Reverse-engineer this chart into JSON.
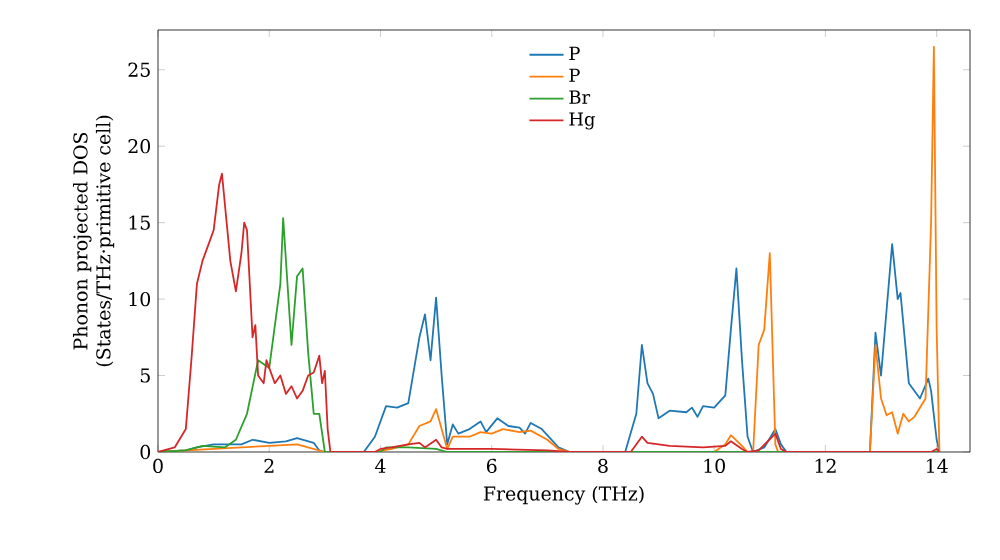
{
  "chart_data": {
    "type": "line",
    "xlabel": "Frequency (THz)",
    "ylabel": "Phonon projected DOS\n(States/THz·primitive cell)",
    "xlim": [
      0,
      14.6
    ],
    "ylim": [
      0,
      27.6
    ],
    "xticks": [
      0,
      2,
      4,
      6,
      8,
      10,
      12,
      14
    ],
    "yticks": [
      0,
      5,
      10,
      15,
      20,
      25
    ],
    "legend": "top",
    "series": [
      {
        "name": "P",
        "color": "#1f77b4",
        "x": [
          0,
          0.5,
          0.7,
          1.0,
          1.5,
          1.7,
          2.0,
          2.3,
          2.5,
          2.8,
          2.9,
          3.0,
          3.7,
          3.9,
          4.1,
          4.3,
          4.5,
          4.7,
          4.8,
          4.9,
          5.0,
          5.1,
          5.2,
          5.3,
          5.4,
          5.6,
          5.8,
          5.9,
          6.1,
          6.3,
          6.5,
          6.6,
          6.7,
          6.9,
          7.2,
          7.4,
          8.4,
          8.6,
          8.7,
          8.8,
          8.9,
          9.0,
          9.2,
          9.5,
          9.6,
          9.7,
          9.8,
          10.0,
          10.2,
          10.3,
          10.4,
          10.5,
          10.6,
          10.7,
          10.9,
          11.1,
          11.2,
          11.3,
          12.8,
          12.9,
          13.0,
          13.2,
          13.3,
          13.35,
          13.5,
          13.7,
          13.85,
          13.9,
          14.0,
          14.05
        ],
        "values": [
          0,
          0.1,
          0.3,
          0.5,
          0.5,
          0.8,
          0.6,
          0.7,
          0.9,
          0.6,
          0.1,
          0,
          0,
          1.0,
          3.0,
          2.9,
          3.2,
          7.5,
          9.0,
          6.0,
          10.1,
          5.0,
          0.5,
          1.8,
          1.2,
          1.5,
          2.0,
          1.3,
          2.2,
          1.7,
          1.6,
          1.2,
          1.9,
          1.5,
          0.3,
          0,
          0,
          2.5,
          7.0,
          4.5,
          3.8,
          2.2,
          2.7,
          2.6,
          2.9,
          2.3,
          3.0,
          2.9,
          3.7,
          8.0,
          12.0,
          6.0,
          1.0,
          0,
          0.3,
          1.5,
          0.5,
          0,
          0,
          7.8,
          5.0,
          13.6,
          10.0,
          10.4,
          4.5,
          3.5,
          4.8,
          4.0,
          0.8,
          0
        ]
      },
      {
        "name": "P",
        "color": "#ff7f0e",
        "x": [
          0,
          1.0,
          2.0,
          2.5,
          3.0,
          3.9,
          4.2,
          4.5,
          4.7,
          4.9,
          5.0,
          5.1,
          5.2,
          5.3,
          5.6,
          5.8,
          6.0,
          6.2,
          6.5,
          6.7,
          7.0,
          7.2,
          7.4,
          10.0,
          10.2,
          10.3,
          10.5,
          10.6,
          10.7,
          10.8,
          10.9,
          11.0,
          11.1,
          11.15,
          12.8,
          12.9,
          13.0,
          13.1,
          13.2,
          13.3,
          13.4,
          13.5,
          13.6,
          13.8,
          13.9,
          13.95,
          14.0,
          14.05
        ],
        "values": [
          0,
          0.2,
          0.4,
          0.5,
          0,
          0,
          0.2,
          0.5,
          1.7,
          2.0,
          2.8,
          1.5,
          0.2,
          1.0,
          1.0,
          1.3,
          1.2,
          1.5,
          1.3,
          1.4,
          0.8,
          0.2,
          0,
          0,
          0.5,
          1.1,
          0.4,
          0,
          0,
          7.0,
          8.0,
          13.0,
          0.5,
          0,
          0,
          7.0,
          3.5,
          2.4,
          2.6,
          1.2,
          2.5,
          2.0,
          2.3,
          3.5,
          15.0,
          26.5,
          8.0,
          0
        ]
      },
      {
        "name": "Br",
        "color": "#2ca02c",
        "x": [
          0,
          0.5,
          0.8,
          1.2,
          1.4,
          1.6,
          1.8,
          2.0,
          2.2,
          2.25,
          2.4,
          2.5,
          2.6,
          2.7,
          2.8,
          2.9,
          3.0,
          4.0,
          4.1,
          4.5,
          5.0,
          5.2,
          14.05
        ],
        "values": [
          0,
          0.1,
          0.4,
          0.3,
          0.8,
          2.5,
          6.0,
          5.5,
          11.0,
          15.3,
          7.0,
          11.5,
          12.0,
          6.5,
          2.5,
          2.5,
          0,
          0,
          0.3,
          0.3,
          0.2,
          0,
          0
        ]
      },
      {
        "name": "Hg",
        "color": "#d62728",
        "x": [
          0,
          0.3,
          0.5,
          0.6,
          0.7,
          0.8,
          0.9,
          1.0,
          1.1,
          1.15,
          1.3,
          1.4,
          1.5,
          1.55,
          1.6,
          1.7,
          1.75,
          1.8,
          1.9,
          1.95,
          2.0,
          2.1,
          2.2,
          2.3,
          2.4,
          2.5,
          2.6,
          2.7,
          2.8,
          2.9,
          2.95,
          3.0,
          3.05,
          3.1,
          3.9,
          4.0,
          4.2,
          4.5,
          4.7,
          4.8,
          5.0,
          5.1,
          5.2,
          6.0,
          7.0,
          7.4,
          8.5,
          8.7,
          8.8,
          9.2,
          9.8,
          10.2,
          10.3,
          10.5,
          10.6,
          10.8,
          11.1,
          11.2,
          11.3,
          13.9,
          14.0,
          14.05
        ],
        "values": [
          0,
          0.3,
          1.5,
          6.0,
          11.0,
          12.5,
          13.5,
          14.5,
          17.5,
          18.2,
          12.5,
          10.5,
          13.0,
          15.0,
          14.5,
          7.5,
          8.3,
          5.0,
          4.5,
          6.0,
          5.5,
          4.5,
          5.0,
          3.8,
          4.3,
          3.5,
          4.0,
          5.0,
          5.2,
          6.3,
          4.5,
          5.3,
          1.5,
          0,
          0,
          0.2,
          0.3,
          0.5,
          0.6,
          0.3,
          0.8,
          0.3,
          0.2,
          0.2,
          0.1,
          0,
          0,
          1.0,
          0.6,
          0.4,
          0.3,
          0.4,
          0.7,
          0.2,
          0,
          0.1,
          1.2,
          0.2,
          0,
          0,
          0.2,
          0
        ]
      }
    ]
  }
}
